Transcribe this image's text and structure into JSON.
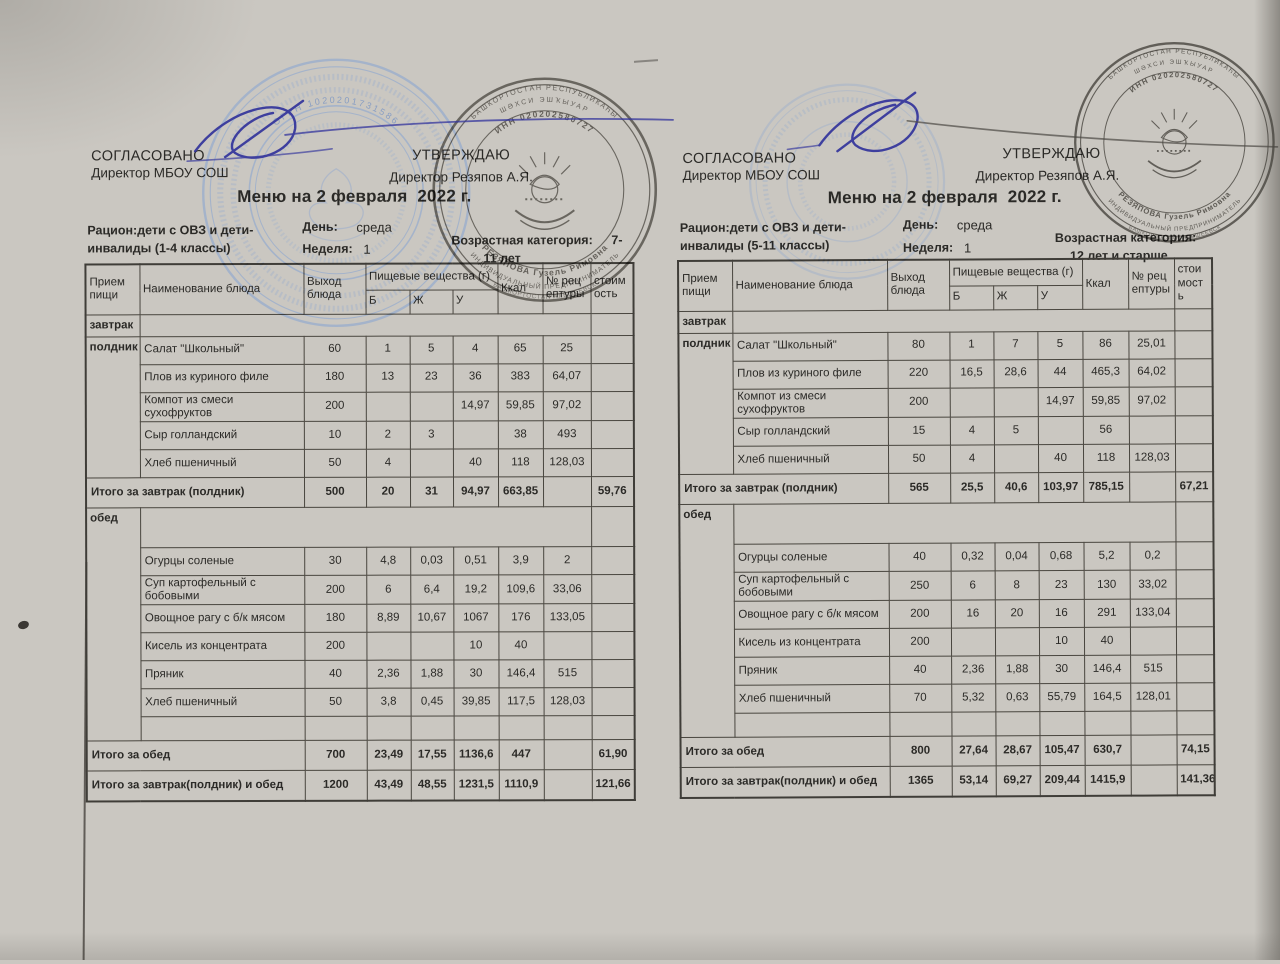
{
  "document_kind": "Школьное меню (скан)",
  "pages": [
    {
      "approved_label": "СОГЛАСОВАНО",
      "approved_role": "Директор МБОУ СОШ",
      "confirm_label": "УТВЕРЖДАЮ",
      "confirm_role": "Директор Резяпов А.Я.",
      "title": "Меню на 2 февраля  2022 г.",
      "ration_line1": "Рацион:дети с ОВЗ и дети-",
      "ration_line2": "инвалиды (1-4 классы)",
      "day_label": "День:",
      "day_value": "среда",
      "week_label": "Неделя:",
      "week_value": "1",
      "age_label": "Возрастная категория:",
      "age_side": "7-",
      "age_value": "11 лет",
      "table": {
        "col_headers": {
          "meal": "Прием пищи",
          "dish": "Наименование блюда",
          "output": "Выход блюда",
          "nutrients": "Пищевые вещества (г)",
          "b": "Б",
          "zh": "Ж",
          "u": "У",
          "kcal": "Ккал",
          "recipe": "№ рецептуры",
          "cost": "стоимость"
        },
        "sections": [
          {
            "meal": "завтрак"
          },
          {
            "meal": "полдник",
            "dishes": [
              [
                "Салат \"Школьный\"",
                "60",
                "1",
                "5",
                "4",
                "65",
                "25",
                ""
              ],
              [
                "Плов из куриного филе",
                "180",
                "13",
                "23",
                "36",
                "383",
                "64,07",
                ""
              ],
              [
                "Компот из смеси сухофруктов",
                "200",
                "",
                "",
                "14,97",
                "59,85",
                "97,02",
                ""
              ],
              [
                "Сыр голландский",
                "10",
                "2",
                "3",
                "",
                "38",
                "493",
                ""
              ],
              [
                "Хлеб пшеничный",
                "50",
                "4",
                "",
                "40",
                "118",
                "128,03",
                ""
              ]
            ]
          },
          {
            "total": "Итого за завтрак (полдник)",
            "values": [
              "500",
              "20",
              "31",
              "94,97",
              "663,85",
              "",
              "59,76"
            ]
          },
          {
            "meal": "обед",
            "lead_empty": true,
            "trail_blank": true,
            "dishes": [
              [
                "Огурцы соленые",
                "30",
                "4,8",
                "0,03",
                "0,51",
                "3,9",
                "2",
                ""
              ],
              [
                "Суп картофельный с бобовыми",
                "200",
                "6",
                "6,4",
                "19,2",
                "109,6",
                "33,06",
                ""
              ],
              [
                "Овощное рагу с б/к мясом",
                "180",
                "8,89",
                "10,67",
                "1067",
                "176",
                "133,05",
                ""
              ],
              [
                "Кисель из концентрата",
                "200",
                "",
                "",
                "10",
                "40",
                "",
                ""
              ],
              [
                "Пряник",
                "40",
                "2,36",
                "1,88",
                "30",
                "146,4",
                "515",
                ""
              ],
              [
                "Хлеб пшеничный",
                "50",
                "3,8",
                "0,45",
                "39,85",
                "117,5",
                "128,03",
                ""
              ]
            ]
          },
          {
            "total": "Итого за обед",
            "values": [
              "700",
              "23,49",
              "17,55",
              "1136,6",
              "447",
              "",
              "61,90"
            ]
          },
          {
            "total": "Итого за завтрак(полдник) и обед",
            "values": [
              "1200",
              "43,49",
              "48,55",
              "1231,5",
              "1110,9",
              "",
              "121,66"
            ]
          }
        ]
      }
    },
    {
      "approved_label": "СОГЛАСОВАНО",
      "approved_role": "Директор МБОУ СОШ",
      "confirm_label": "УТВЕРЖДАЮ",
      "confirm_role": "Директор Резяпов А.Я.",
      "title": "Меню на 2 февраля  2022 г.",
      "ration_line1": "Рацион:дети с ОВЗ и дети-",
      "ration_line2": "инвалиды (5-11 классы)",
      "day_label": "День:",
      "day_value": "среда",
      "week_label": "Неделя:",
      "week_value": "1",
      "age_label": "Возрастная категория:",
      "age_side": "",
      "age_value": "12 лет и старше",
      "table": {
        "col_headers": {
          "meal": "Прием пищи",
          "dish": "Наименование блюда",
          "output": "Выход блюда",
          "nutrients": "Пищевые вещества (г)",
          "b": "Б",
          "zh": "Ж",
          "u": "У",
          "kcal": "Ккал",
          "recipe": "№ рецептуры",
          "cost": "стоимость"
        },
        "sections": [
          {
            "meal": "завтрак"
          },
          {
            "meal": "полдник",
            "dishes": [
              [
                "Салат \"Школьный\"",
                "80",
                "1",
                "7",
                "5",
                "86",
                "25,01",
                ""
              ],
              [
                "Плов из куриного филе",
                "220",
                "16,5",
                "28,6",
                "44",
                "465,3",
                "64,02",
                ""
              ],
              [
                "Компот из смеси сухофруктов",
                "200",
                "",
                "",
                "14,97",
                "59,85",
                "97,02",
                ""
              ],
              [
                "Сыр голландский",
                "15",
                "4",
                "5",
                "",
                "56",
                "",
                ""
              ],
              [
                "Хлеб пшеничный",
                "50",
                "4",
                "",
                "40",
                "118",
                "128,03",
                ""
              ]
            ]
          },
          {
            "total": "Итого за завтрак (полдник)",
            "values": [
              "565",
              "25,5",
              "40,6",
              "103,97",
              "785,15",
              "",
              "67,21"
            ]
          },
          {
            "meal": "обед",
            "lead_empty": true,
            "trail_blank": true,
            "dishes": [
              [
                "Огурцы соленые",
                "40",
                "0,32",
                "0,04",
                "0,68",
                "5,2",
                "0,2",
                ""
              ],
              [
                "Суп картофельный с бобовыми",
                "250",
                "6",
                "8",
                "23",
                "130",
                "33,02",
                ""
              ],
              [
                "Овощное рагу с б/к мясом",
                "200",
                "16",
                "20",
                "16",
                "291",
                "133,04",
                ""
              ],
              [
                "Кисель из концентрата",
                "200",
                "",
                "",
                "10",
                "40",
                "",
                ""
              ],
              [
                "Пряник",
                "40",
                "2,36",
                "1,88",
                "30",
                "146,4",
                "515",
                ""
              ],
              [
                "Хлеб пшеничный",
                "70",
                "5,32",
                "0,63",
                "55,79",
                "164,5",
                "128,01",
                ""
              ]
            ]
          },
          {
            "total": "Итого за обед",
            "values": [
              "800",
              "27,64",
              "28,67",
              "105,47",
              "630,7",
              "",
              "74,15"
            ]
          },
          {
            "total": "Итого за завтрак(полдник) и обед",
            "values": [
              "1365",
              "53,14",
              "69,27",
              "209,44",
              "1415,9",
              "",
              "141,36"
            ]
          }
        ]
      }
    }
  ],
  "stamps": {
    "blue": {
      "ogrn": "ОГРН 1020201731586"
    },
    "dark": {
      "outer_top": "БАШКОРТОСТАН РЕСПУБЛИКАҺЫ",
      "outer_top2": "ШӘХСИ ЭШҠЫУАР",
      "inn": "ИНН 020202580727",
      "name": "РЕЗЯПОВА Гузель Римовна",
      "outer_bottom": "ИНДИВИДУАЛЬНЫЙ ПРЕДПРИНИМАТЕЛЬ",
      "outer_bottom2": "БАШКОРТОСТАН  АЛЬШЕЕВСК"
    }
  }
}
